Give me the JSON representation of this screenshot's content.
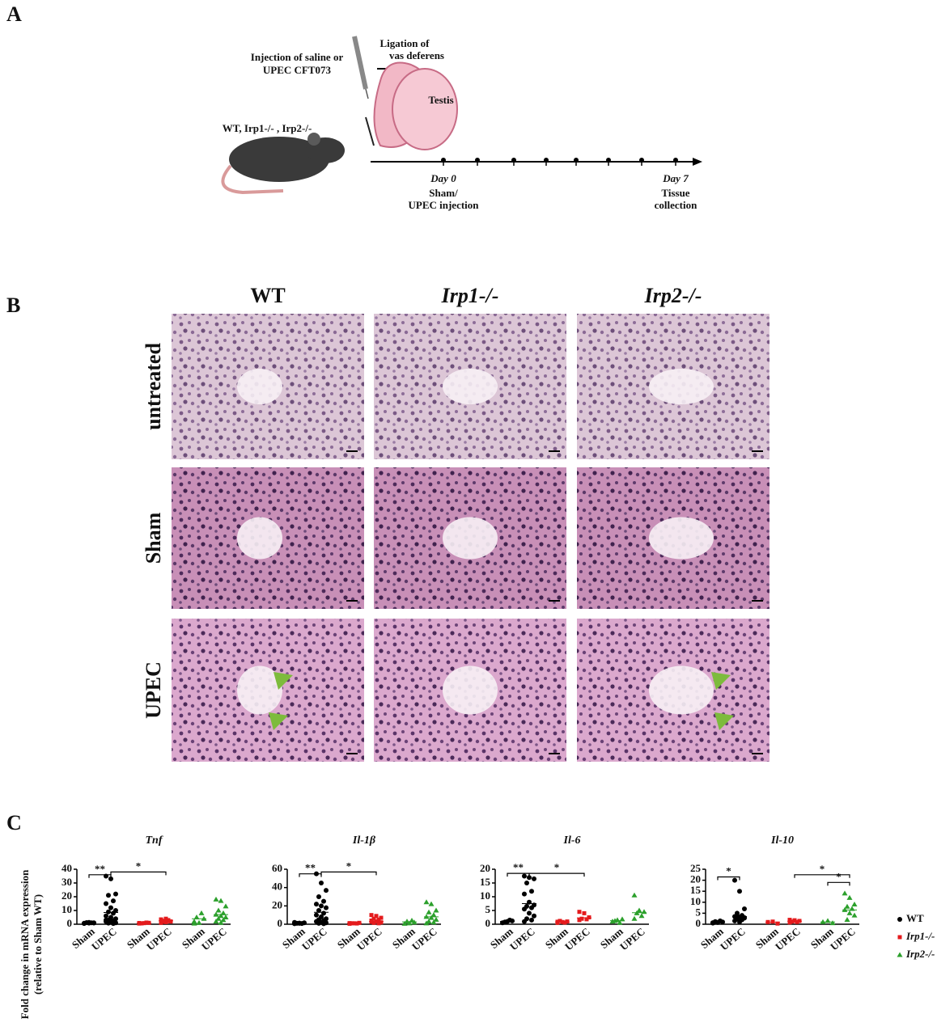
{
  "panel_a": {
    "label": "A",
    "injection": [
      "Injection of saline or",
      "UPEC CFT073"
    ],
    "ligation": [
      "Ligation of",
      "vas deferens"
    ],
    "testis": "Testis",
    "genotypes": "WT, Irp1-/- , Irp2-/-",
    "day0": {
      "day": "Day 0",
      "text": [
        "Sham/",
        "UPEC injection"
      ]
    },
    "day7": {
      "day": "Day 7",
      "text": [
        "Tissue",
        "collection"
      ]
    }
  },
  "panel_b": {
    "label": "B",
    "columns": [
      "WT",
      "Irp1-/-",
      "Irp2-/-"
    ],
    "rows": [
      "untreated",
      "Sham",
      "UPEC"
    ]
  },
  "panel_c": {
    "label": "C",
    "ylabel": [
      "Fold change in mRNA expression",
      "(relative to Sham WT)"
    ],
    "legend": [
      {
        "name": "WT",
        "color": "#000000",
        "marker": "circle"
      },
      {
        "name": "Irp1-/-",
        "color": "#e41a1c",
        "marker": "square"
      },
      {
        "name": "Irp2-/-",
        "color": "#2ca02c",
        "marker": "triangle"
      }
    ]
  },
  "chart_data": [
    {
      "type": "scatter",
      "title": "Tnf",
      "ylim": [
        0,
        40
      ],
      "yticks": [
        0,
        10,
        20,
        30,
        40
      ],
      "groups": [
        "Sham",
        "UPEC",
        "Sham",
        "UPEC",
        "Sham",
        "UPEC"
      ],
      "series": [
        {
          "values": [
            [
              0.5,
              0.8,
              1,
              1.2,
              1,
              0.7,
              1.3,
              0.9
            ],
            [
              35,
              33,
              22,
              21,
              17,
              15,
              12,
              10,
              9,
              8,
              6,
              5,
              4,
              3,
              2.5,
              2,
              1.5,
              1,
              0.8,
              0.5,
              3,
              2
            ]
          ],
          "means": [
            1,
            8.5
          ]
        },
        {
          "values": [
            [
              0.5,
              0.8,
              1,
              0.6,
              1.2,
              0.9
            ],
            [
              1,
              1.5,
              2,
              2.5,
              3,
              3.5,
              4,
              2,
              1.8,
              2.2,
              3
            ]
          ],
          "means": [
            0.8,
            2.5
          ]
        },
        {
          "values": [
            [
              0.5,
              1,
              4,
              5,
              8,
              2
            ],
            [
              18,
              17,
              13,
              10,
              8,
              7,
              6,
              5,
              4,
              3,
              2,
              1
            ]
          ],
          "means": [
            4,
            7
          ]
        }
      ],
      "brackets": [
        {
          "from": 0,
          "to": 1,
          "y": 36,
          "label": "**"
        },
        {
          "from": 1,
          "to": 3,
          "y": 38,
          "label": "*"
        }
      ]
    },
    {
      "type": "scatter",
      "title": "Il-1β",
      "ylim": [
        0,
        60
      ],
      "yticks": [
        0,
        20,
        40,
        60
      ],
      "groups": [
        "Sham",
        "UPEC",
        "Sham",
        "UPEC",
        "Sham",
        "UPEC"
      ],
      "series": [
        {
          "values": [
            [
              0.5,
              1,
              1.5,
              1,
              0.8,
              2,
              1.2
            ],
            [
              55,
              45,
              37,
              30,
              25,
              22,
              20,
              18,
              15,
              12,
              10,
              8,
              6,
              5,
              4,
              3,
              2,
              1.5,
              1,
              0.5
            ]
          ],
          "means": [
            1.2,
            13
          ]
        },
        {
          "values": [
            [
              0.5,
              1,
              1.5,
              1,
              0.8,
              1.2
            ],
            [
              10,
              9,
              7,
              6,
              5,
              4,
              3,
              2,
              1.5,
              1,
              2.5
            ]
          ],
          "means": [
            1,
            3
          ]
        },
        {
          "values": [
            [
              0.5,
              1,
              2,
              3,
              4
            ],
            [
              24,
              22,
              15,
              13,
              10,
              8,
              7,
              5,
              3,
              2,
              1
            ]
          ],
          "means": [
            2.5,
            8
          ]
        }
      ],
      "brackets": [
        {
          "from": 0,
          "to": 1,
          "y": 55,
          "label": "**"
        },
        {
          "from": 1,
          "to": 3,
          "y": 57,
          "label": "*"
        }
      ]
    },
    {
      "type": "scatter",
      "title": "Il-6",
      "ylim": [
        0,
        20
      ],
      "yticks": [
        0,
        5,
        10,
        15,
        20
      ],
      "groups": [
        "Sham",
        "UPEC",
        "Sham",
        "UPEC",
        "Sham",
        "UPEC"
      ],
      "series": [
        {
          "values": [
            [
              0.5,
              1,
              1.2,
              0.8,
              1.5
            ],
            [
              17.5,
              17,
              16.5,
              15,
              12,
              11,
              8,
              7,
              6.5,
              6,
              5.5,
              4,
              3,
              2,
              1.5,
              1
            ]
          ],
          "means": [
            1,
            7.5
          ]
        },
        {
          "values": [
            [
              0.5,
              0.8,
              1,
              1.2,
              0.6,
              0.9
            ],
            [
              4.5,
              4,
              2.5,
              2,
              1.8,
              1.5
            ]
          ],
          "means": [
            0.8,
            2.3
          ]
        },
        {
          "values": [
            [
              1,
              1.5,
              1.8,
              1.2,
              0.5
            ],
            [
              10.5,
              5,
              4.5,
              4,
              3,
              2
            ]
          ],
          "means": [
            1.3,
            4.2
          ]
        }
      ],
      "brackets": [
        {
          "from": 0,
          "to": 1,
          "y": 18.5,
          "label": "**"
        },
        {
          "from": 1,
          "to": 3,
          "y": 18.5,
          "label": "*"
        }
      ]
    },
    {
      "type": "scatter",
      "title": "Il-10",
      "ylim": [
        0,
        25
      ],
      "yticks": [
        0,
        5,
        10,
        15,
        20,
        25
      ],
      "groups": [
        "Sham",
        "UPEC",
        "Sham",
        "UPEC",
        "Sham",
        "UPEC"
      ],
      "series": [
        {
          "values": [
            [
              0.5,
              0.8,
              1,
              1.2,
              1.5,
              0.7
            ],
            [
              20,
              15,
              7,
              5,
              4,
              3.5,
              3,
              2.8,
              2.5,
              2,
              1.5,
              1,
              3,
              4
            ]
          ],
          "means": [
            1,
            3.5
          ]
        },
        {
          "values": [
            [
              1,
              1.2,
              0.3
            ],
            [
              2,
              1.8,
              1.5,
              1.2,
              1,
              0.8,
              1.6
            ]
          ],
          "means": [
            0.9,
            1.4
          ]
        },
        {
          "values": [
            [
              1,
              1.5,
              0.5
            ],
            [
              14,
              12,
              9,
              8,
              7,
              6.5,
              5,
              4,
              2
            ]
          ],
          "means": [
            1,
            6.5
          ]
        }
      ],
      "brackets": [
        {
          "from": 0,
          "to": 1,
          "y": 21.5,
          "label": "*"
        },
        {
          "from": 4,
          "to": 5,
          "y": 19,
          "label": "*"
        },
        {
          "from": 3,
          "to": 5,
          "y": 22.5,
          "label": "*"
        }
      ]
    }
  ]
}
